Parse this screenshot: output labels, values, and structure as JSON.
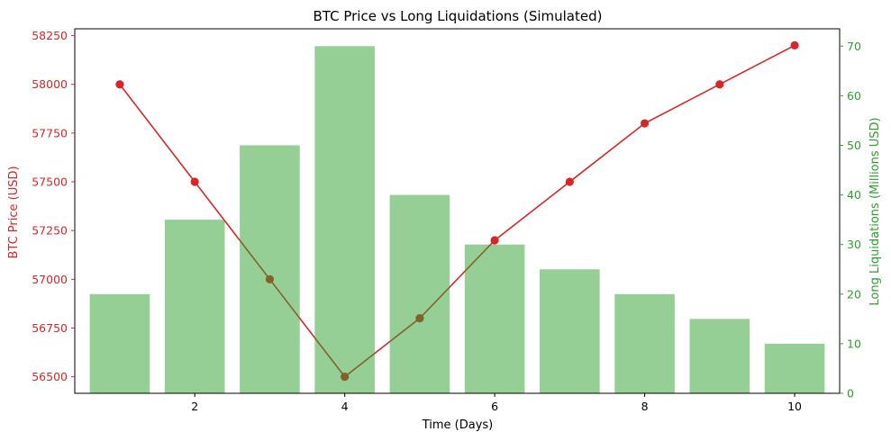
{
  "chart_data": {
    "type": "bar+line",
    "title": "BTC Price vs Long Liquidations (Simulated)",
    "xlabel": "Time (Days)",
    "ylabel_left": "BTC Price (USD)",
    "ylabel_right": "Long Liquidations (Millions USD)",
    "x": [
      1,
      2,
      3,
      4,
      5,
      6,
      7,
      8,
      9,
      10
    ],
    "xlim": [
      0.4,
      10.6
    ],
    "xticks": [
      2,
      4,
      6,
      8,
      10
    ],
    "series": [
      {
        "name": "BTC Price",
        "kind": "line",
        "axis": "left",
        "values": [
          58000,
          57500,
          57000,
          56500,
          56800,
          57200,
          57500,
          57800,
          58000,
          58200
        ]
      },
      {
        "name": "Long Liquidations",
        "kind": "bar",
        "axis": "right",
        "values": [
          20,
          35,
          50,
          70,
          40,
          30,
          25,
          20,
          15,
          10
        ]
      }
    ],
    "ylim_left": [
      56415,
      58285
    ],
    "yticks_left": [
      56500,
      56750,
      57000,
      57250,
      57500,
      57750,
      58000,
      58250
    ],
    "ylim_right": [
      0,
      73.5
    ],
    "yticks_right": [
      0,
      10,
      20,
      30,
      40,
      50,
      60,
      70
    ],
    "colors": {
      "line": "#d62728",
      "bar": "#2ca02c",
      "bar_fill": "#98ce94",
      "left_axis_text": "#d62728",
      "right_axis_text": "#2ca02c"
    },
    "grid": false,
    "legend": "none"
  }
}
